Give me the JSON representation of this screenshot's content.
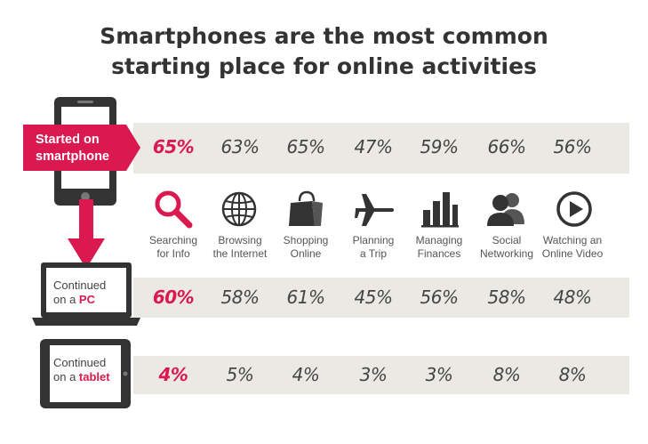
{
  "title_line1": "Smartphones are the most common",
  "title_line2": "starting place for online activities",
  "colors": {
    "accent": "#d9194f",
    "band": "#ebe9e4",
    "device": "#333333"
  },
  "rows": {
    "smartphone": {
      "label_line1": "Started on",
      "label_line2": "smartphone"
    },
    "pc": {
      "label_prefix": "Continued",
      "label_mid": "on a ",
      "label_em": "PC"
    },
    "tablet": {
      "label_prefix": "Continued",
      "label_mid": "on a ",
      "label_em": "tablet"
    }
  },
  "activities": [
    {
      "line1": "Searching",
      "line2": "for Info",
      "icon": "magnifier-icon"
    },
    {
      "line1": "Browsing",
      "line2": "the Internet",
      "icon": "globe-icon"
    },
    {
      "line1": "Shopping",
      "line2": "Online",
      "icon": "shopping-bag-icon"
    },
    {
      "line1": "Planning",
      "line2": "a Trip",
      "icon": "airplane-icon"
    },
    {
      "line1": "Managing",
      "line2": "Finances",
      "icon": "bar-chart-icon"
    },
    {
      "line1": "Social",
      "line2": "Networking",
      "icon": "people-icon"
    },
    {
      "line1": "Watching an",
      "line2": "Online Video",
      "icon": "play-icon"
    }
  ],
  "chart_data": {
    "type": "table",
    "categories": [
      "Searching for Info",
      "Browsing the Internet",
      "Shopping Online",
      "Planning a Trip",
      "Managing Finances",
      "Social Networking",
      "Watching an Online Video"
    ],
    "series": [
      {
        "name": "Started on smartphone",
        "values": [
          65,
          63,
          65,
          47,
          59,
          66,
          56
        ],
        "labels": [
          "65%",
          "63%",
          "65%",
          "47%",
          "59%",
          "66%",
          "56%"
        ]
      },
      {
        "name": "Continued on a PC",
        "values": [
          60,
          58,
          61,
          45,
          56,
          58,
          48
        ],
        "labels": [
          "60%",
          "58%",
          "61%",
          "45%",
          "56%",
          "58%",
          "48%"
        ]
      },
      {
        "name": "Continued on a tablet",
        "values": [
          4,
          5,
          4,
          3,
          3,
          8,
          8
        ],
        "labels": [
          "4%",
          "5%",
          "4%",
          "3%",
          "3%",
          "8%",
          "8%"
        ]
      }
    ],
    "highlight_column": 0
  }
}
